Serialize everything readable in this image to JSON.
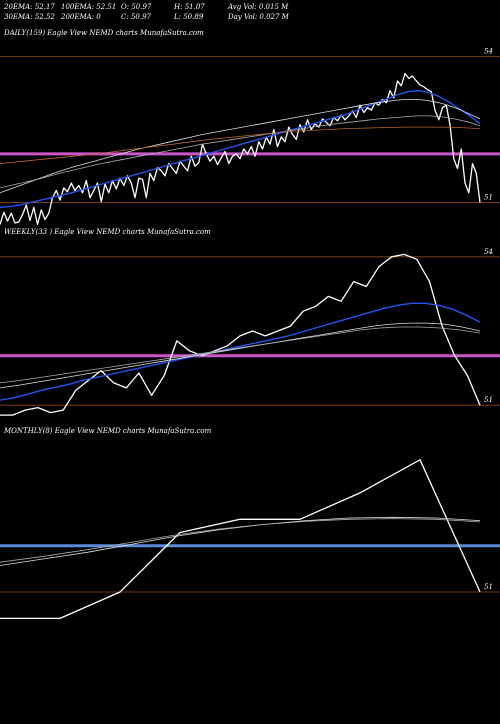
{
  "header": {
    "row1": [
      "20EMA: 52.17",
      "100EMA: 52.51",
      "O: 50.97",
      "H: 51.07",
      "Avg Vol: 0.015 M"
    ],
    "row2": [
      "30EMA: 52.52",
      "200EMA: 0",
      "C: 50.97",
      "L: 50.89",
      "Day Vol: 0.027 M"
    ]
  },
  "chart_data": [
    {
      "type": "line",
      "title": "DAILY(159) Eagle  View  NEMD charts MunafaSutra.com",
      "ylim": [
        50.6,
        54.3
      ],
      "yticks": [
        "54",
        "51"
      ],
      "hlines": [
        {
          "value": 54.0,
          "color": "#8a4a1e"
        },
        {
          "value": 51.0,
          "color": "#8a4a1e"
        },
        {
          "value": 52.0,
          "color": "#cc55cc"
        }
      ],
      "series": [
        {
          "color": "#ffffff",
          "width": 1.3,
          "values": [
            50.55,
            50.8,
            50.62,
            50.78,
            50.58,
            50.6,
            50.75,
            50.95,
            50.63,
            50.9,
            50.55,
            50.85,
            50.65,
            50.78,
            51.1,
            51.25,
            51.05,
            51.3,
            51.22,
            51.4,
            51.25,
            51.35,
            51.2,
            51.45,
            51.1,
            51.25,
            51.4,
            51.02,
            51.38,
            51.2,
            51.45,
            51.28,
            51.5,
            51.35,
            51.55,
            51.4,
            51.1,
            51.5,
            51.48,
            51.1,
            51.6,
            51.45,
            51.72,
            51.65,
            51.55,
            51.8,
            51.7,
            51.6,
            51.85,
            51.75,
            51.65,
            51.95,
            51.75,
            51.82,
            52.2,
            52.0,
            51.85,
            51.95,
            51.78,
            51.92,
            52.05,
            51.8,
            51.95,
            52.0,
            51.9,
            52.1,
            52.0,
            52.15,
            51.95,
            52.25,
            52.1,
            52.35,
            52.2,
            52.5,
            52.15,
            52.35,
            52.25,
            52.55,
            52.4,
            52.3,
            52.6,
            52.45,
            52.7,
            52.5,
            52.62,
            52.55,
            52.72,
            52.65,
            52.58,
            52.75,
            52.68,
            52.8,
            52.7,
            52.78,
            52.88,
            52.75,
            53.0,
            52.85,
            52.95,
            52.9,
            53.05,
            53.0,
            53.12,
            53.05,
            53.3,
            53.15,
            53.5,
            53.4,
            53.65,
            53.55,
            53.6,
            53.5,
            53.42,
            53.38,
            53.32,
            53.28,
            52.9,
            52.7,
            52.95,
            53.0,
            52.6,
            51.9,
            51.7,
            52.1,
            51.4,
            51.2,
            51.8,
            51.6,
            51.0
          ]
        },
        {
          "color": "#2255ee",
          "width": 1.4,
          "values": [
            50.9,
            50.92,
            50.95,
            51.0,
            51.05,
            51.1,
            51.15,
            51.2,
            51.26,
            51.32,
            51.38,
            51.44,
            51.5,
            51.56,
            51.62,
            51.68,
            51.74,
            51.8,
            51.86,
            51.92,
            51.98,
            52.04,
            52.1,
            52.16,
            52.22,
            52.28,
            52.34,
            52.4,
            52.46,
            52.52,
            52.58,
            52.64,
            52.7,
            52.76,
            52.82,
            52.9,
            52.98,
            53.06,
            53.14,
            53.22,
            53.28,
            53.3,
            53.26,
            53.18,
            53.06,
            52.92,
            52.78,
            52.62
          ]
        },
        {
          "color": "#dddddd",
          "width": 0.8,
          "values": [
            51.2,
            51.28,
            51.36,
            51.44,
            51.52,
            51.6,
            51.67,
            51.74,
            51.8,
            51.86,
            51.92,
            51.98,
            52.04,
            52.1,
            52.15,
            52.2,
            52.25,
            52.3,
            52.35,
            52.4,
            52.44,
            52.48,
            52.52,
            52.56,
            52.6,
            52.64,
            52.68,
            52.72,
            52.76,
            52.8,
            52.84,
            52.88,
            52.92,
            52.96,
            53.0,
            53.04,
            53.07,
            53.1,
            53.12,
            53.12,
            53.1,
            53.06,
            53.0,
            52.92,
            52.82,
            52.72
          ]
        },
        {
          "color": "#aaaaaa",
          "width": 0.8,
          "values": [
            51.3,
            51.36,
            51.42,
            51.48,
            51.55,
            51.62,
            51.68,
            51.74,
            51.8,
            51.85,
            51.9,
            51.95,
            52.0,
            52.05,
            52.1,
            52.15,
            52.2,
            52.24,
            52.28,
            52.32,
            52.36,
            52.4,
            52.44,
            52.48,
            52.52,
            52.56,
            52.6,
            52.63,
            52.66,
            52.69,
            52.72,
            52.74,
            52.76,
            52.78,
            52.78,
            52.76,
            52.72,
            52.66,
            52.58
          ]
        },
        {
          "color": "#b7652a",
          "width": 0.8,
          "values": [
            51.8,
            51.84,
            51.88,
            51.92,
            51.96,
            52.0,
            52.05,
            52.1,
            52.15,
            52.2,
            52.25,
            52.3,
            52.34,
            52.38,
            52.42,
            52.46,
            52.48,
            52.5,
            52.52,
            52.53,
            52.54,
            52.55,
            52.55,
            52.55,
            52.54,
            52.52
          ]
        }
      ]
    },
    {
      "type": "line",
      "title": "WEEKLY(33                ) Eagle  View  NEMD charts MunafaSutra.com",
      "ylim": [
        50.7,
        54.3
      ],
      "yticks": [
        "54",
        "51"
      ],
      "hlines": [
        {
          "value": 54.0,
          "color": "#8a4a1e"
        },
        {
          "value": 51.0,
          "color": "#8a4a1e"
        },
        {
          "value": 52.0,
          "color": "#cc55cc"
        }
      ],
      "series": [
        {
          "color": "#ffffff",
          "width": 1.3,
          "values": [
            50.8,
            50.8,
            50.9,
            50.95,
            50.85,
            50.9,
            51.3,
            51.5,
            51.7,
            51.45,
            51.35,
            51.65,
            51.2,
            51.6,
            52.3,
            52.1,
            52.0,
            52.1,
            52.2,
            52.4,
            52.5,
            52.4,
            52.5,
            52.6,
            52.9,
            53.0,
            53.2,
            53.1,
            53.5,
            53.4,
            53.8,
            54.0,
            54.05,
            53.95,
            53.5,
            52.6,
            52.0,
            51.6,
            51.0
          ]
        },
        {
          "color": "#2255ee",
          "width": 1.4,
          "values": [
            51.1,
            51.15,
            51.22,
            51.3,
            51.36,
            51.42,
            51.5,
            51.56,
            51.62,
            51.68,
            51.74,
            51.8,
            51.86,
            51.92,
            51.98,
            52.04,
            52.1,
            52.16,
            52.22,
            52.28,
            52.34,
            52.4,
            52.48,
            52.56,
            52.64,
            52.72,
            52.8,
            52.88,
            52.96,
            53.02,
            53.06,
            53.06,
            53.02,
            52.94,
            52.82,
            52.68
          ]
        },
        {
          "color": "#dddddd",
          "width": 0.8,
          "values": [
            51.35,
            51.4,
            51.46,
            51.52,
            51.58,
            51.64,
            51.7,
            51.76,
            51.82,
            51.88,
            51.94,
            52.0,
            52.06,
            52.12,
            52.18,
            52.24,
            52.3,
            52.36,
            52.42,
            52.48,
            52.54,
            52.6,
            52.64,
            52.66,
            52.66,
            52.64,
            52.58,
            52.5
          ]
        },
        {
          "color": "#aaaaaa",
          "width": 0.8,
          "values": [
            51.45,
            51.5,
            51.56,
            51.62,
            51.68,
            51.74,
            51.8,
            51.86,
            51.92,
            51.98,
            52.04,
            52.1,
            52.16,
            52.22,
            52.28,
            52.34,
            52.4,
            52.46,
            52.52,
            52.56,
            52.58,
            52.58,
            52.56,
            52.52,
            52.46
          ]
        }
      ]
    },
    {
      "type": "line",
      "title": "MONTHLY(8) Eagle  View  NEMD charts MunafaSutra.com",
      "ylim": [
        50.5,
        53.3
      ],
      "yticks": [
        "51"
      ],
      "hlines": [
        {
          "value": 51.0,
          "color": "#8a4a1e"
        },
        {
          "value": 51.7,
          "color": "#5b8bd9"
        }
      ],
      "series": [
        {
          "color": "#ffffff",
          "width": 1.3,
          "values": [
            50.6,
            50.6,
            51.0,
            51.9,
            52.1,
            52.1,
            52.5,
            53.0,
            51.0
          ]
        },
        {
          "color": "#dddddd",
          "width": 0.8,
          "values": [
            51.4,
            51.5,
            51.6,
            51.72,
            51.84,
            51.94,
            52.02,
            52.08,
            52.12,
            52.13,
            52.12,
            52.08
          ]
        },
        {
          "color": "#aaaaaa",
          "width": 0.8,
          "values": [
            51.45,
            51.54,
            51.64,
            51.75,
            51.86,
            51.95,
            52.02,
            52.07,
            52.1,
            52.11,
            52.1,
            52.06
          ]
        }
      ]
    }
  ]
}
